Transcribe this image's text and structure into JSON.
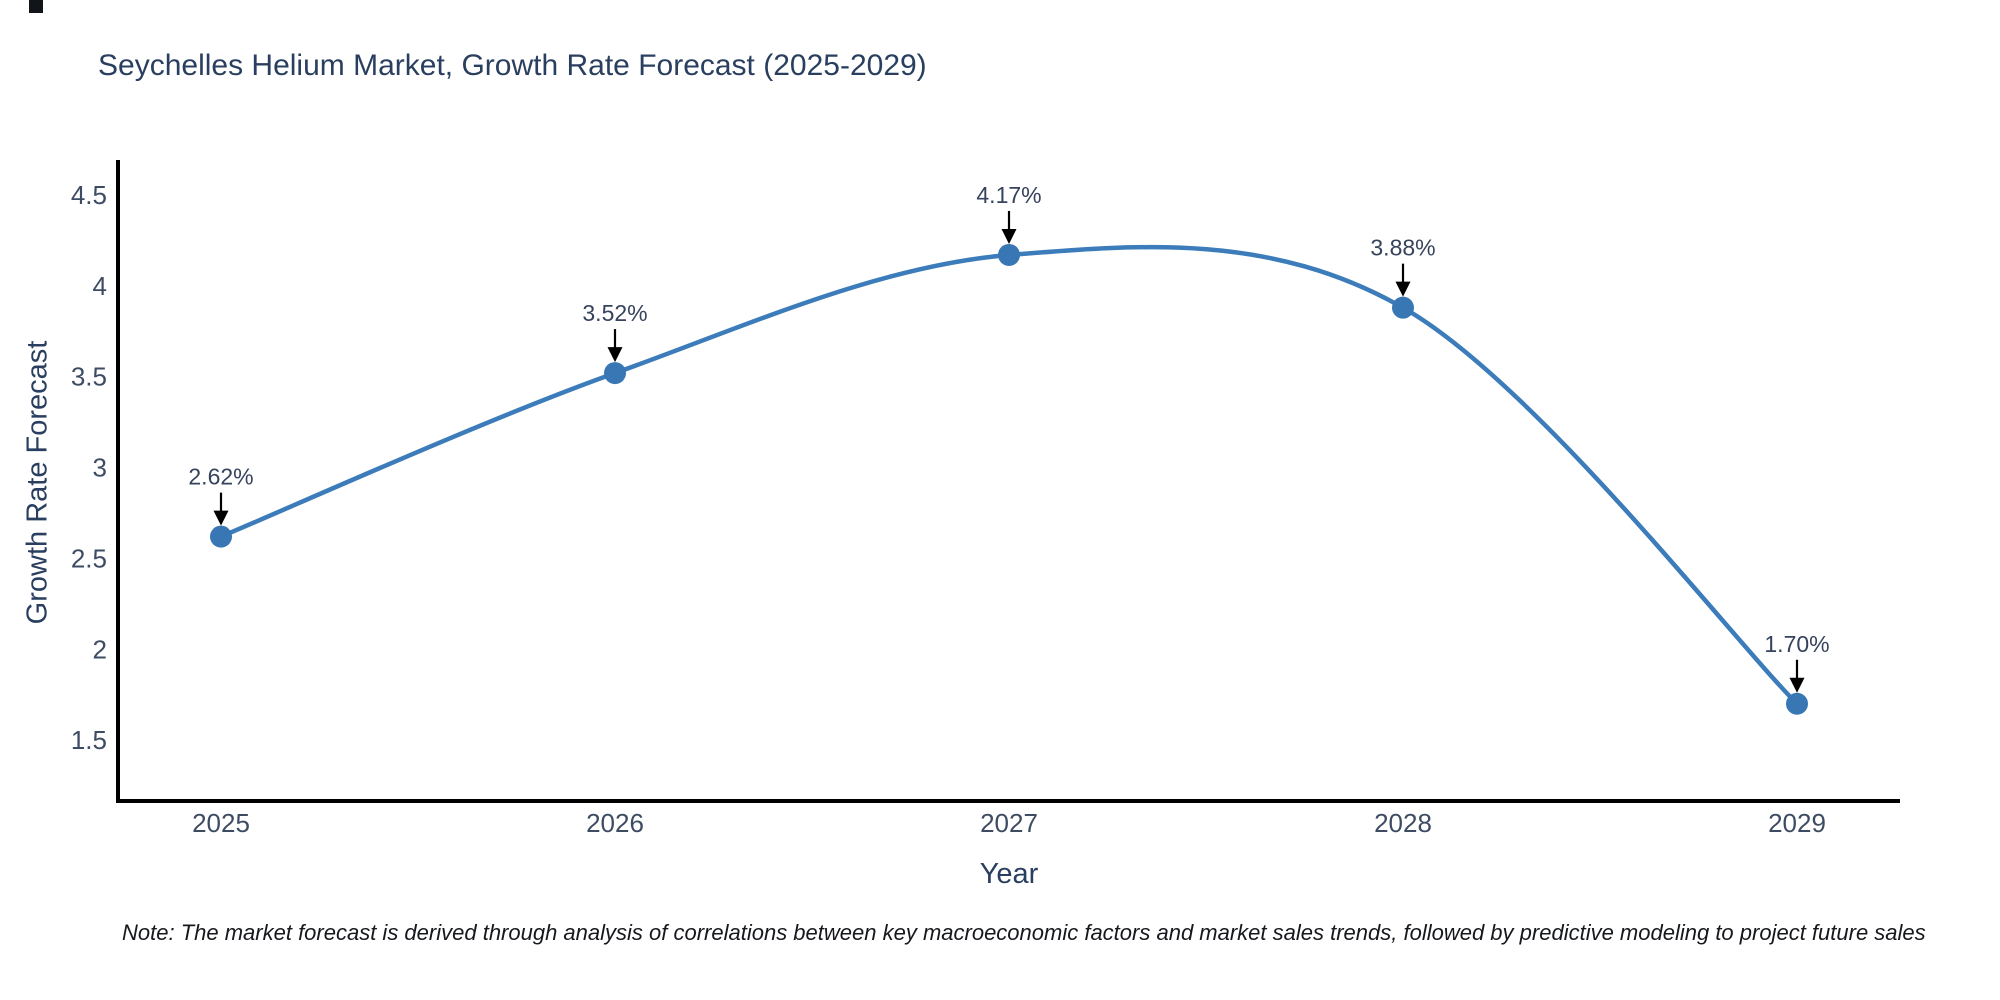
{
  "title": "Seychelles Helium Market, Growth Rate Forecast (2025-2029)",
  "note": "Note: The market forecast is derived through analysis of correlations between key macroeconomic factors and market sales trends, followed by predictive modeling to project future sales",
  "chart_data": {
    "type": "line",
    "title": "Seychelles Helium Market, Growth Rate Forecast (2025-2029)",
    "xlabel": "Year",
    "ylabel": "Growth Rate Forecast",
    "categories": [
      "2025",
      "2026",
      "2027",
      "2028",
      "2029"
    ],
    "x": [
      2025,
      2026,
      2027,
      2028,
      2029
    ],
    "values": [
      2.62,
      3.52,
      4.17,
      3.88,
      1.7
    ],
    "point_labels": [
      "2.62%",
      "3.52%",
      "4.17%",
      "3.88%",
      "1.70%"
    ],
    "yticks": [
      4.5,
      4,
      3.5,
      3,
      2.5,
      2,
      1.5
    ],
    "ytick_labels": [
      "4.5",
      "4",
      "3.5",
      "3",
      "2.5",
      "2",
      "1.5"
    ],
    "ylim": [
      1.165,
      4.693
    ],
    "grid": false,
    "legend_position": "none",
    "line_shape": "spline",
    "annotations_have_arrows": true,
    "colors": {
      "line": "#3c7cba",
      "marker": "#3877b4",
      "axis_line": "#000000",
      "tick_text": "#3e4c63",
      "title_text": "#2a3f5f",
      "annotation_text": "#36435c",
      "arrow": "#000000",
      "background": "#ffffff"
    }
  }
}
